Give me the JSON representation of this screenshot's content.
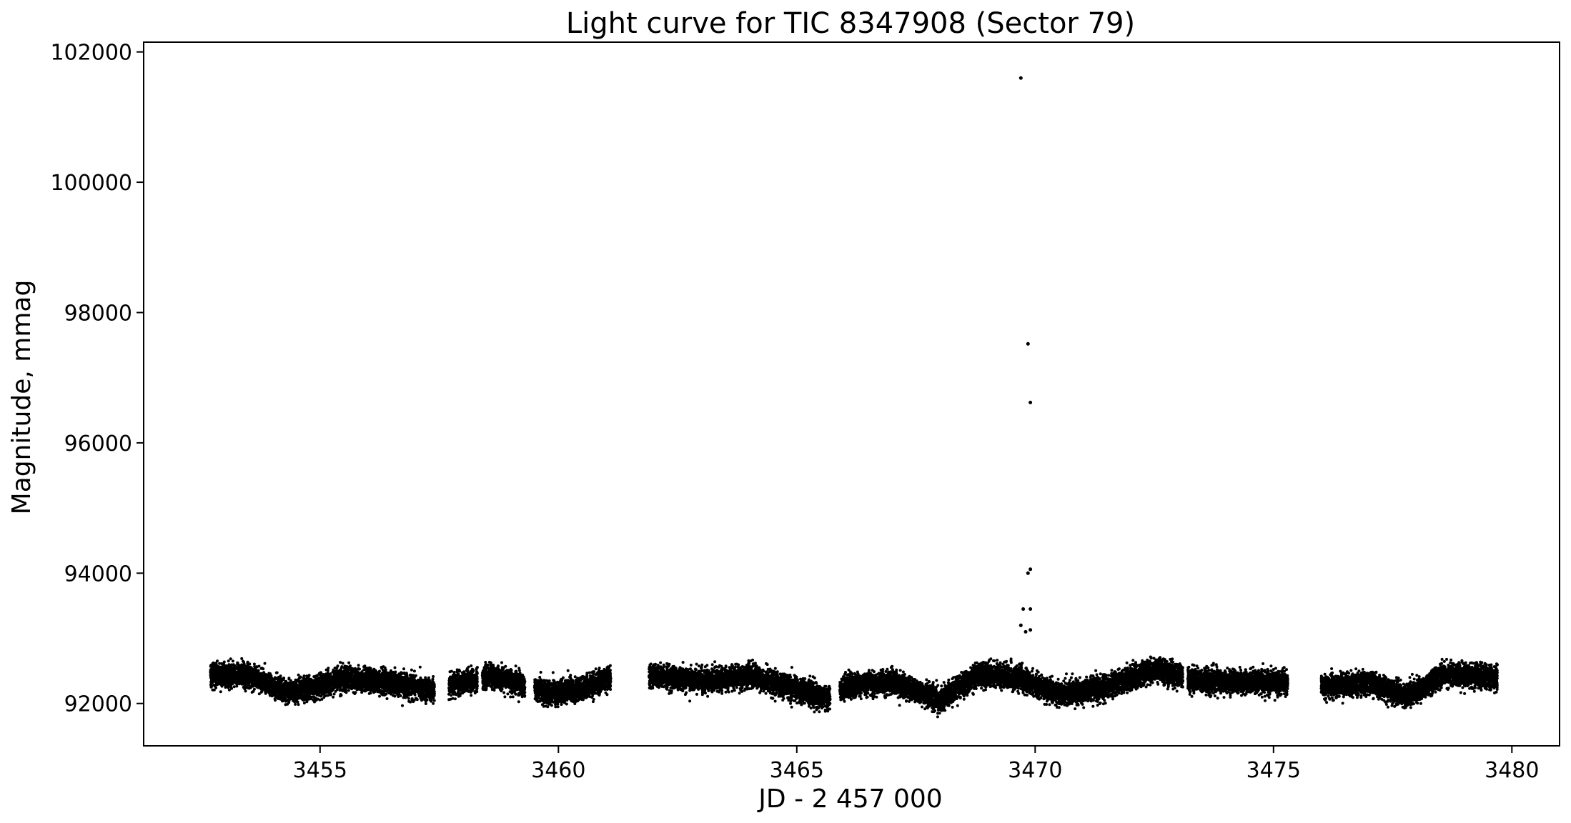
{
  "chart_data": {
    "type": "scatter",
    "title": "Light curve for TIC 8347908 (Sector 79)",
    "xlabel": "JD - 2 457 000",
    "ylabel": "Magnitude, mmag",
    "xlim": [
      3451.3,
      3481.0
    ],
    "ylim": [
      91350,
      102150
    ],
    "x_ticks": [
      "3455",
      "3460",
      "3465",
      "3470",
      "3475",
      "3480"
    ],
    "y_ticks": [
      "92000",
      "94000",
      "96000",
      "98000",
      "100000",
      "102000"
    ],
    "grid": false,
    "legend": "none",
    "marker_color": "#000000",
    "segments": [
      {
        "x_start": 3452.7,
        "x_end": 3457.4
      },
      {
        "x_start": 3457.7,
        "x_end": 3458.3
      },
      {
        "x_start": 3458.4,
        "x_end": 3459.3
      },
      {
        "x_start": 3459.5,
        "x_end": 3461.1
      },
      {
        "x_start": 3461.9,
        "x_end": 3465.7
      },
      {
        "x_start": 3465.9,
        "x_end": 3473.1
      },
      {
        "x_start": 3473.2,
        "x_end": 3475.3
      },
      {
        "x_start": 3476.0,
        "x_end": 3479.7
      }
    ],
    "trend": [
      {
        "x": 3452.7,
        "y": 92450
      },
      {
        "x": 3453.5,
        "y": 92430
      },
      {
        "x": 3454.3,
        "y": 92180
      },
      {
        "x": 3454.9,
        "y": 92250
      },
      {
        "x": 3455.5,
        "y": 92380
      },
      {
        "x": 3456.5,
        "y": 92330
      },
      {
        "x": 3457.4,
        "y": 92200
      },
      {
        "x": 3457.8,
        "y": 92300
      },
      {
        "x": 3458.6,
        "y": 92420
      },
      {
        "x": 3459.3,
        "y": 92280
      },
      {
        "x": 3459.8,
        "y": 92150
      },
      {
        "x": 3460.5,
        "y": 92220
      },
      {
        "x": 3461.1,
        "y": 92400
      },
      {
        "x": 3462.0,
        "y": 92420
      },
      {
        "x": 3463.0,
        "y": 92350
      },
      {
        "x": 3464.0,
        "y": 92430
      },
      {
        "x": 3464.8,
        "y": 92250
      },
      {
        "x": 3465.7,
        "y": 92080
      },
      {
        "x": 3466.0,
        "y": 92250
      },
      {
        "x": 3467.0,
        "y": 92330
      },
      {
        "x": 3468.0,
        "y": 92050
      },
      {
        "x": 3468.8,
        "y": 92450
      },
      {
        "x": 3469.7,
        "y": 92380
      },
      {
        "x": 3470.5,
        "y": 92130
      },
      {
        "x": 3471.5,
        "y": 92250
      },
      {
        "x": 3472.5,
        "y": 92520
      },
      {
        "x": 3473.1,
        "y": 92420
      },
      {
        "x": 3473.3,
        "y": 92350
      },
      {
        "x": 3475.3,
        "y": 92320
      },
      {
        "x": 3476.0,
        "y": 92250
      },
      {
        "x": 3477.0,
        "y": 92320
      },
      {
        "x": 3477.8,
        "y": 92100
      },
      {
        "x": 3478.6,
        "y": 92450
      },
      {
        "x": 3479.7,
        "y": 92400
      }
    ],
    "scatter_amplitude": 150,
    "outliers": [
      {
        "x": 3469.7,
        "y": 101600
      },
      {
        "x": 3469.85,
        "y": 97520
      },
      {
        "x": 3469.9,
        "y": 96620
      },
      {
        "x": 3469.85,
        "y": 94000
      },
      {
        "x": 3469.9,
        "y": 94060
      },
      {
        "x": 3469.75,
        "y": 93450
      },
      {
        "x": 3469.9,
        "y": 93450
      },
      {
        "x": 3469.7,
        "y": 93200
      },
      {
        "x": 3469.8,
        "y": 93100
      },
      {
        "x": 3469.9,
        "y": 93130
      }
    ]
  }
}
